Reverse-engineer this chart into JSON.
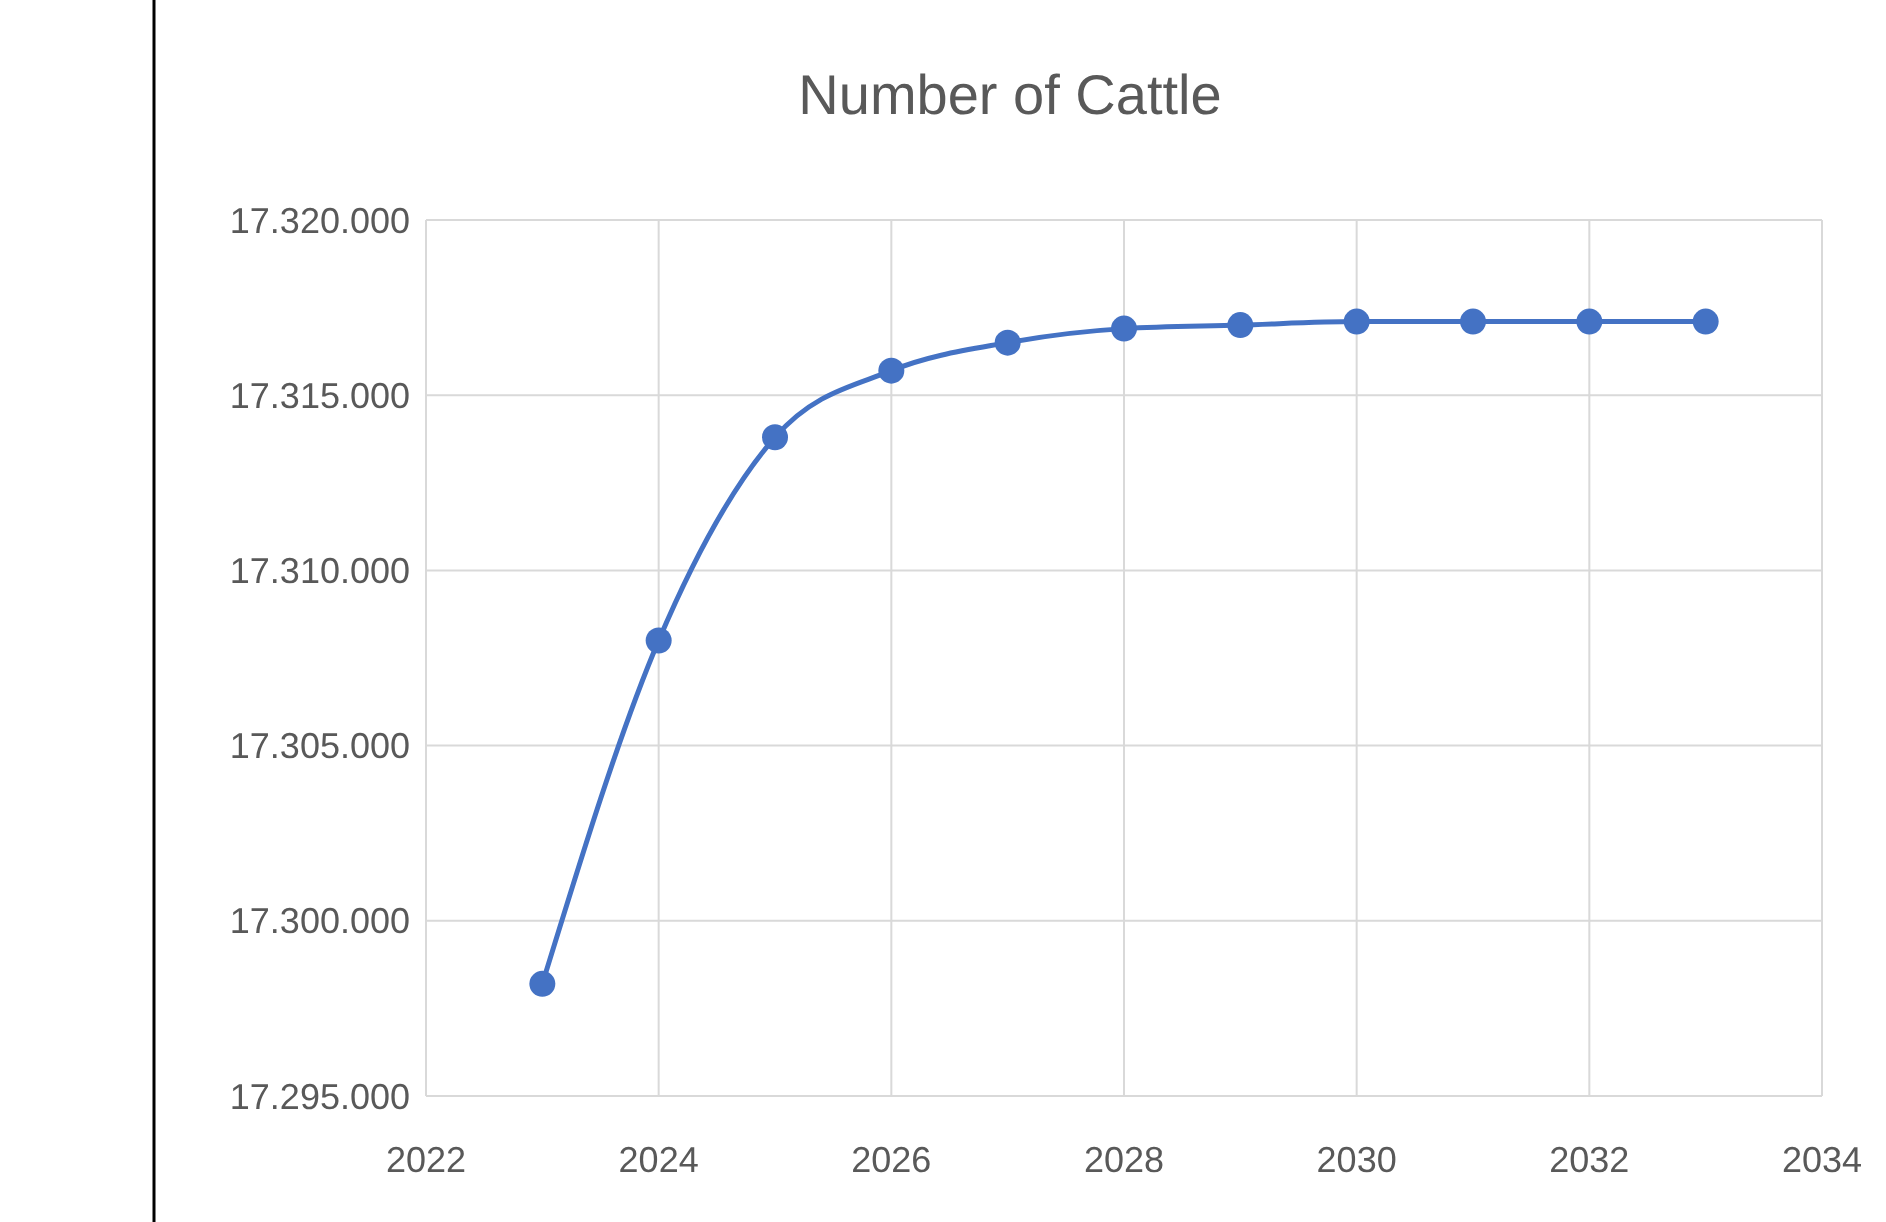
{
  "chart_data": {
    "type": "line",
    "title": "Number of Cattle",
    "x": [
      2023,
      2024,
      2025,
      2026,
      2027,
      2028,
      2029,
      2030,
      2031,
      2032,
      2033
    ],
    "series": [
      {
        "color": "#4472c4",
        "values": [
          17298200,
          17308000,
          17313800,
          17315700,
          17316500,
          17316900,
          17317000,
          17317100,
          17317100,
          17317100,
          17317100
        ]
      }
    ],
    "xlim": [
      2022,
      2034
    ],
    "xticks": [
      2022,
      2024,
      2026,
      2028,
      2030,
      2032,
      2034
    ],
    "ylim": [
      17295000,
      17320000
    ],
    "yticks": [
      {
        "value": 17295000,
        "label": "17.295.000"
      },
      {
        "value": 17300000,
        "label": "17.300.000"
      },
      {
        "value": 17305000,
        "label": "17.305.000"
      },
      {
        "value": 17310000,
        "label": "17.310.000"
      },
      {
        "value": 17315000,
        "label": "17.315.000"
      },
      {
        "value": 17320000,
        "label": "17.320.000"
      }
    ],
    "grid": true,
    "marker": "circle",
    "line_style": "solid"
  }
}
